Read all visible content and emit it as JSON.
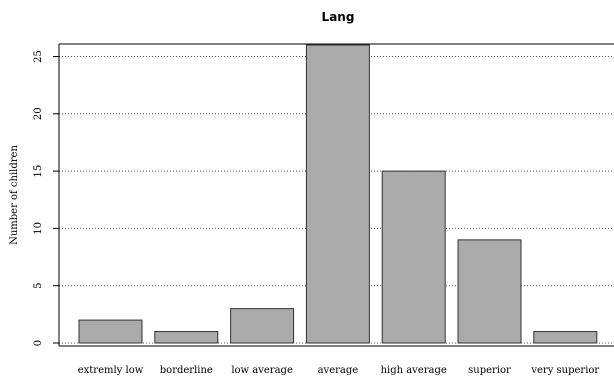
{
  "chart_data": {
    "type": "bar",
    "title": "Lang",
    "xlabel": "",
    "ylabel": "Number of children",
    "categories": [
      "extremly low",
      "borderline",
      "low average",
      "average",
      "high average",
      "superior",
      "very superior"
    ],
    "values": [
      2,
      1,
      3,
      26,
      15,
      9,
      1
    ],
    "ylim": [
      0,
      26
    ],
    "yticks": [
      0,
      5,
      10,
      15,
      20,
      25
    ],
    "grid": "horizontal-dotted",
    "colors": {
      "bar_fill": "#aaaaaa",
      "bar_stroke": "#333333",
      "grid": "#555555"
    }
  }
}
